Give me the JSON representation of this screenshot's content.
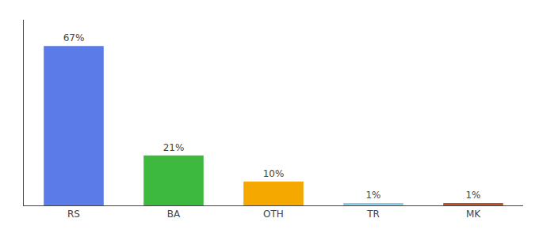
{
  "chart_data": {
    "type": "bar",
    "categories": [
      "RS",
      "BA",
      "OTH",
      "TR",
      "MK"
    ],
    "values": [
      67,
      21,
      10,
      1,
      1
    ],
    "value_labels": [
      "67%",
      "21%",
      "10%",
      "1%",
      "1%"
    ],
    "colors": [
      "#5b7be8",
      "#3dba3d",
      "#f5a800",
      "#87ceeb",
      "#c0522a"
    ],
    "ylim": [
      0,
      78
    ],
    "grid": false,
    "data_labels": true,
    "tick_labels": "x"
  }
}
